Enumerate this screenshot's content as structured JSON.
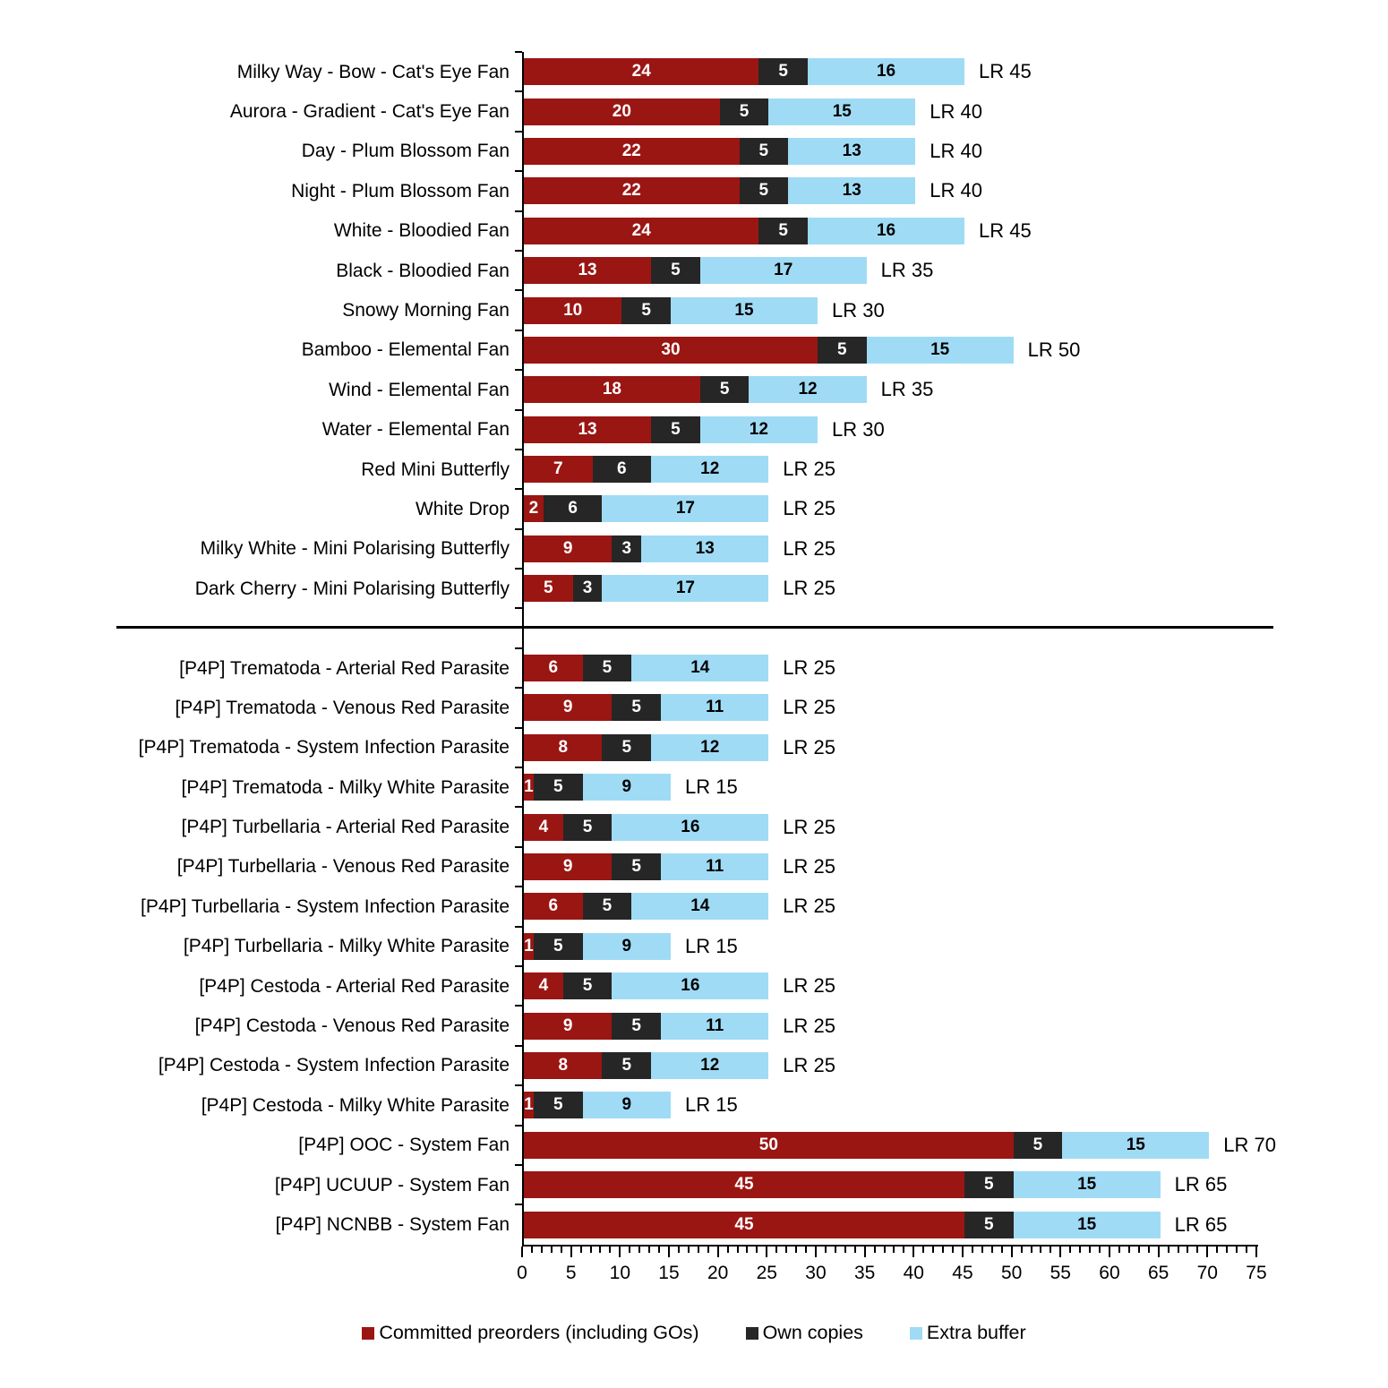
{
  "chart_data": {
    "type": "bar",
    "orientation": "horizontal",
    "stacked": true,
    "title": "",
    "xlabel": "",
    "ylabel": "",
    "xlim": [
      0,
      75
    ],
    "x_ticks": [
      0,
      5,
      10,
      15,
      20,
      25,
      30,
      35,
      40,
      45,
      50,
      55,
      60,
      65,
      70,
      75
    ],
    "grid": false,
    "legend_position": "bottom",
    "legend": [
      {
        "label": "Committed preorders (including GOs)",
        "color": "#9A1613"
      },
      {
        "label": "Own copies",
        "color": "#262626"
      },
      {
        "label": "Extra buffer",
        "color": "#A0DBF5"
      }
    ],
    "series_names": [
      "Committed preorders (including GOs)",
      "Own copies",
      "Extra buffer"
    ],
    "total_label_prefix": "LR",
    "groups": [
      {
        "name": "fans",
        "rows": [
          {
            "label": "Milky Way - Bow - Cat's Eye Fan",
            "values": [
              24,
              5,
              16
            ],
            "total": 45,
            "total_label": "LR 45"
          },
          {
            "label": "Aurora - Gradient - Cat's Eye Fan",
            "values": [
              20,
              5,
              15
            ],
            "total": 40,
            "total_label": "LR 40"
          },
          {
            "label": "Day - Plum Blossom Fan",
            "values": [
              22,
              5,
              13
            ],
            "total": 40,
            "total_label": "LR 40"
          },
          {
            "label": "Night - Plum Blossom Fan",
            "values": [
              22,
              5,
              13
            ],
            "total": 40,
            "total_label": "LR 40"
          },
          {
            "label": "White - Bloodied Fan",
            "values": [
              24,
              5,
              16
            ],
            "total": 45,
            "total_label": "LR 45"
          },
          {
            "label": "Black - Bloodied Fan",
            "values": [
              13,
              5,
              17
            ],
            "total": 35,
            "total_label": "LR 35"
          },
          {
            "label": "Snowy Morning Fan",
            "values": [
              10,
              5,
              15
            ],
            "total": 30,
            "total_label": "LR 30"
          },
          {
            "label": "Bamboo - Elemental Fan",
            "values": [
              30,
              5,
              15
            ],
            "total": 50,
            "total_label": "LR 50"
          },
          {
            "label": "Wind - Elemental Fan",
            "values": [
              18,
              5,
              12
            ],
            "total": 35,
            "total_label": "LR 35"
          },
          {
            "label": "Water - Elemental Fan",
            "values": [
              13,
              5,
              12
            ],
            "total": 30,
            "total_label": "LR 30"
          },
          {
            "label": "Red Mini Butterfly",
            "values": [
              7,
              6,
              12
            ],
            "total": 25,
            "total_label": "LR 25"
          },
          {
            "label": "White Drop",
            "values": [
              2,
              6,
              17
            ],
            "total": 25,
            "total_label": "LR 25"
          },
          {
            "label": "Milky White - Mini Polarising Butterfly",
            "values": [
              9,
              3,
              13
            ],
            "total": 25,
            "total_label": "LR 25"
          },
          {
            "label": "Dark Cherry - Mini Polarising Butterfly",
            "values": [
              5,
              3,
              17
            ],
            "total": 25,
            "total_label": "LR 25"
          }
        ]
      },
      {
        "name": "p4p",
        "rows": [
          {
            "label": "[P4P] Trematoda - Arterial Red Parasite",
            "values": [
              6,
              5,
              14
            ],
            "total": 25,
            "total_label": "LR 25"
          },
          {
            "label": "[P4P] Trematoda - Venous Red Parasite",
            "values": [
              9,
              5,
              11
            ],
            "total": 25,
            "total_label": "LR 25"
          },
          {
            "label": "[P4P] Trematoda - System Infection Parasite",
            "values": [
              8,
              5,
              12
            ],
            "total": 25,
            "total_label": "LR 25"
          },
          {
            "label": "[P4P] Trematoda - Milky White Parasite",
            "values": [
              1,
              5,
              9
            ],
            "total": 15,
            "total_label": "LR 15"
          },
          {
            "label": "[P4P] Turbellaria - Arterial Red Parasite",
            "values": [
              4,
              5,
              16
            ],
            "total": 25,
            "total_label": "LR 25"
          },
          {
            "label": "[P4P] Turbellaria - Venous Red Parasite",
            "values": [
              9,
              5,
              11
            ],
            "total": 25,
            "total_label": "LR 25"
          },
          {
            "label": "[P4P] Turbellaria - System Infection Parasite",
            "values": [
              6,
              5,
              14
            ],
            "total": 25,
            "total_label": "LR 25"
          },
          {
            "label": "[P4P] Turbellaria - Milky White Parasite",
            "values": [
              1,
              5,
              9
            ],
            "total": 15,
            "total_label": "LR 15"
          },
          {
            "label": "[P4P] Cestoda - Arterial Red Parasite",
            "values": [
              4,
              5,
              16
            ],
            "total": 25,
            "total_label": "LR 25"
          },
          {
            "label": "[P4P] Cestoda - Venous Red Parasite",
            "values": [
              9,
              5,
              11
            ],
            "total": 25,
            "total_label": "LR 25"
          },
          {
            "label": "[P4P] Cestoda - System Infection Parasite",
            "values": [
              8,
              5,
              12
            ],
            "total": 25,
            "total_label": "LR 25"
          },
          {
            "label": "[P4P] Cestoda - Milky White Parasite",
            "values": [
              1,
              5,
              9
            ],
            "total": 15,
            "total_label": "LR 15"
          },
          {
            "label": "[P4P] OOC - System Fan",
            "values": [
              50,
              5,
              15
            ],
            "total": 70,
            "total_label": "LR 70"
          },
          {
            "label": "[P4P] UCUUP - System Fan",
            "values": [
              45,
              5,
              15
            ],
            "total": 65,
            "total_label": "LR 65"
          },
          {
            "label": "[P4P] NCNBB - System Fan",
            "values": [
              45,
              5,
              15
            ],
            "total": 65,
            "total_label": "LR 65"
          }
        ]
      }
    ]
  }
}
